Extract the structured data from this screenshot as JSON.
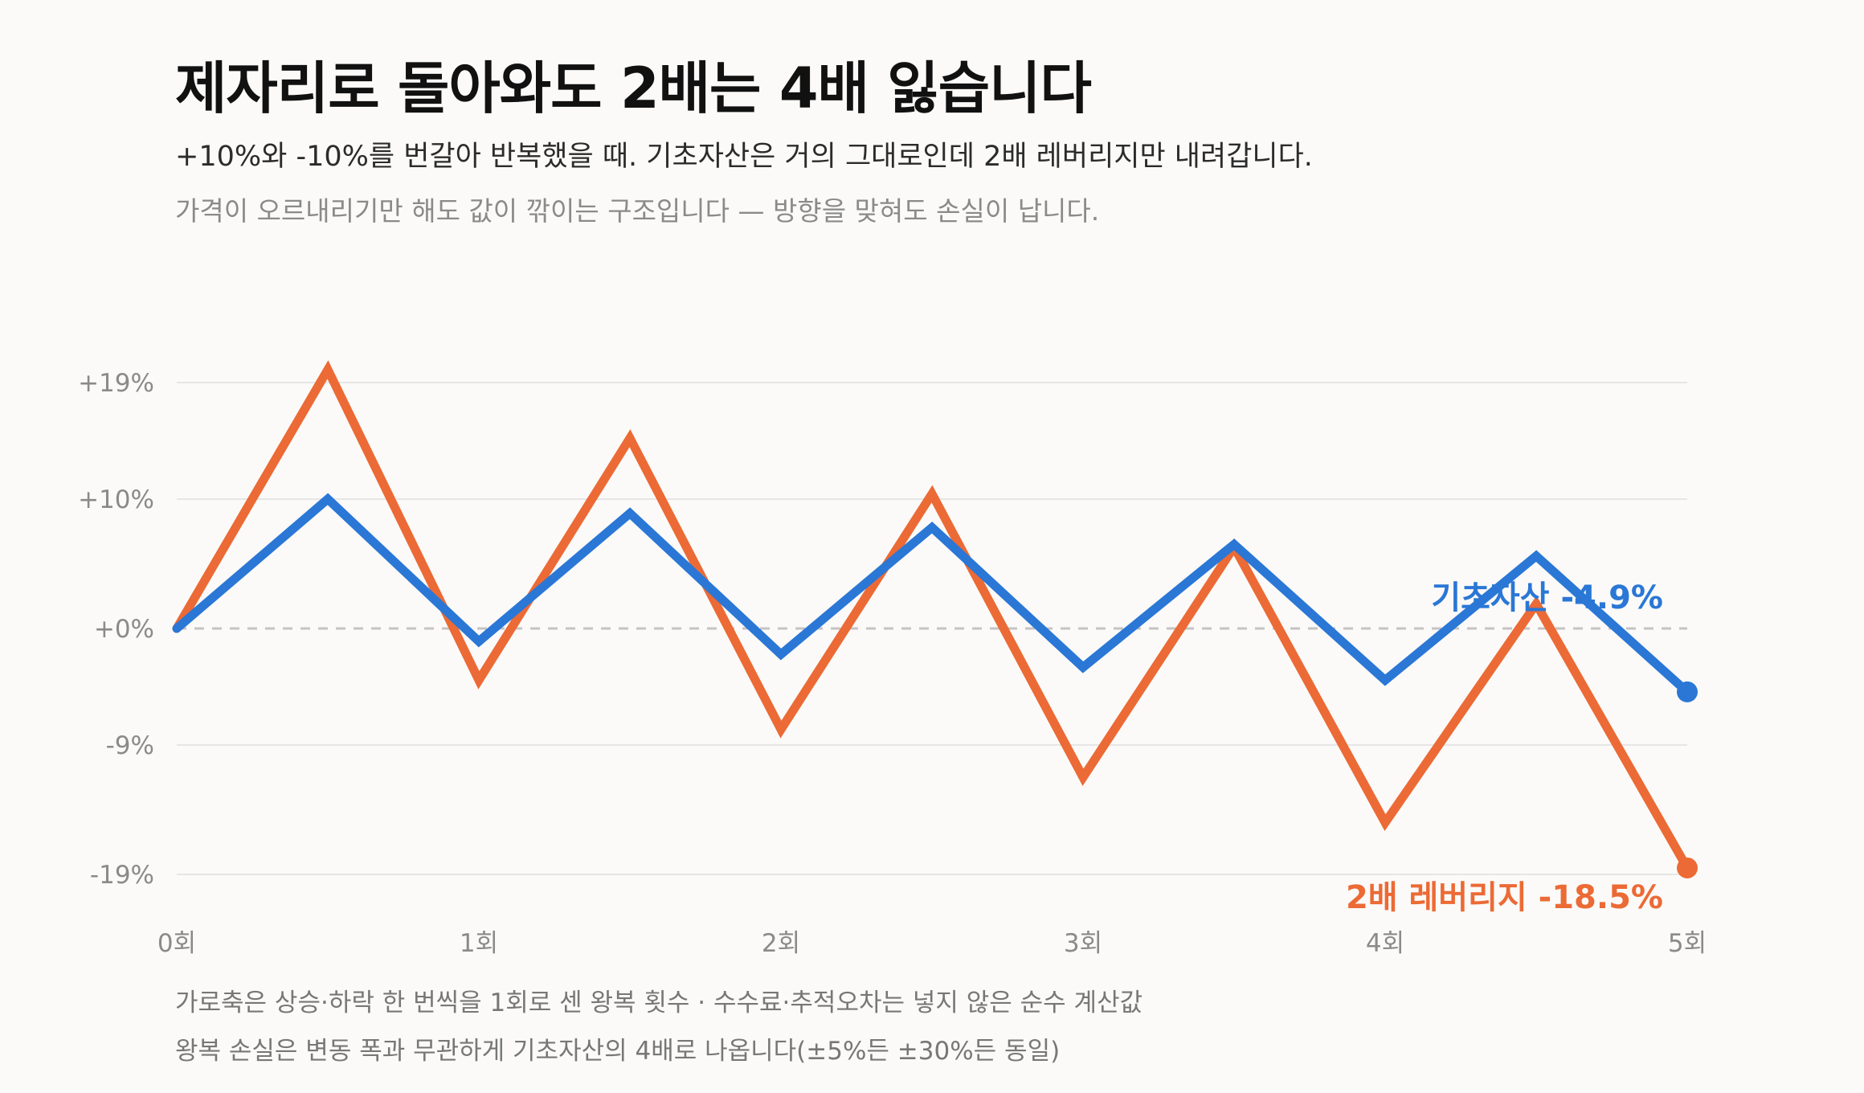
{
  "header": {
    "title": "제자리로 돌아와도 2배는 4배 잃습니다",
    "subtitle": "+10%와 -10%를 번갈아 반복했을 때. 기초자산은 거의 그대로인데 2배 레버리지만 내려갑니다.",
    "subtitle2": "가격이 오르내리기만 해도 값이 깎이는 구조입니다 — 방향을 맞혀도 손실이 납니다."
  },
  "footer": {
    "note1": "가로축은 상승·하락 한 번씩을 1회로 센 왕복 횟수 · 수수료·추적오차는 넣지 않은 순수 계산값",
    "note2": "왕복 손실은 변동 폭과 무관하게 기초자산의 4배로 나옵니다(±5%든 ±30%든 동일)"
  },
  "chart_data": {
    "type": "line",
    "x": [
      0,
      0.5,
      1,
      1.5,
      2,
      2.5,
      3,
      3.5,
      4,
      4.5,
      5
    ],
    "x_ticks": [
      0,
      1,
      2,
      3,
      4,
      5
    ],
    "x_tick_labels": [
      "0회",
      "1회",
      "2회",
      "3회",
      "4회",
      "5회"
    ],
    "y_ticks": [
      19,
      10,
      0,
      -9,
      -19
    ],
    "y_tick_labels": [
      "+19%",
      "+10%",
      "+0%",
      "-9%",
      "-19%"
    ],
    "ylim": [
      -19,
      19
    ],
    "xlim": [
      0,
      5
    ],
    "series": [
      {
        "name": "기초자산",
        "color": "#2a77d6",
        "values": [
          0,
          10,
          -1,
          8.9,
          -2,
          7.8,
          -3,
          6.5,
          -4,
          5.6,
          -4.9
        ],
        "end_label": "기초자산 -4.9%"
      },
      {
        "name": "2배 레버리지",
        "color": "#ec6a35",
        "values": [
          0,
          20,
          -4,
          14.7,
          -7.8,
          10.4,
          -11.5,
          6.3,
          -15,
          1.9,
          -18.5
        ],
        "end_label": "2배 레버리지 -18.5%"
      }
    ],
    "zero_line": "dashed",
    "grid": true
  }
}
